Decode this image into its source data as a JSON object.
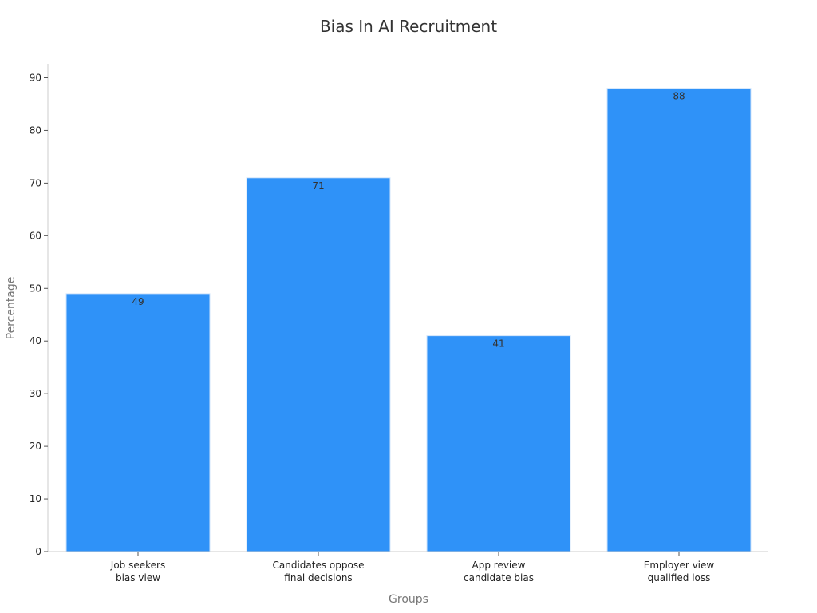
{
  "chart_data": {
    "type": "bar",
    "title": "Bias In AI Recruitment",
    "xlabel": "Groups",
    "ylabel": "Percentage",
    "categories": [
      [
        "Job seekers",
        "bias view"
      ],
      [
        "Candidates oppose",
        "final decisions"
      ],
      [
        "App review",
        "candidate bias"
      ],
      [
        "Employer view",
        "qualified loss"
      ]
    ],
    "values": [
      49,
      71,
      41,
      88
    ],
    "ylim": [
      0,
      92
    ],
    "yticks": [
      0,
      10,
      20,
      30,
      40,
      50,
      60,
      70,
      80,
      90
    ],
    "grid": false,
    "legend": "none",
    "bar_color": "#2f92f8",
    "bar_edge_color": "#d0e4fb"
  }
}
